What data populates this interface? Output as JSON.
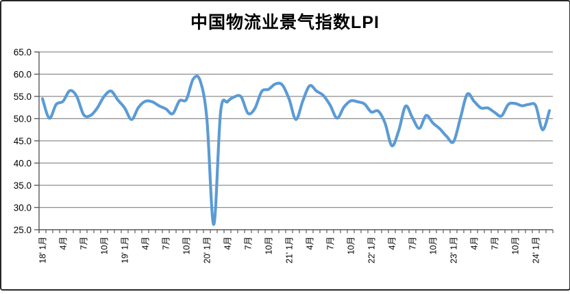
{
  "chart": {
    "title": "中国物流业景气指数LPI",
    "line_color": "#5B9BD5",
    "grid_color": "#8C8C8C",
    "axis_color": "#595959",
    "background_color": "#FFFFFF",
    "frame_color": "#262626"
  },
  "chart_data": {
    "type": "line",
    "title": "中国物流业景气指数LPI",
    "smooth": true,
    "grid": "horizontal",
    "legend": "none",
    "xlabel": "",
    "ylabel": "",
    "ylim": [
      25.0,
      65.0
    ],
    "y_ticks": [
      65.0,
      60.0,
      55.0,
      50.0,
      45.0,
      40.0,
      35.0,
      30.0,
      25.0
    ],
    "x_tick_labels": [
      "18' 1月",
      "4月",
      "7月",
      "10月",
      "19' 1月",
      "4月",
      "7月",
      "10月",
      "20' 1月",
      "4月",
      "7月",
      "10月",
      "21' 1月",
      "4月",
      "7月",
      "10月",
      "22' 1月",
      "4月",
      "7月",
      "10月",
      "23' 1月",
      "4月",
      "7月",
      "10月",
      "24' 1月"
    ],
    "tick_every": 3,
    "series": [
      {
        "name": "物流业景气指数LPI",
        "start_month": "2018-01",
        "end_month": "2024-03",
        "values": [
          54.5,
          50.1,
          53.2,
          53.9,
          56.3,
          55.0,
          50.9,
          50.7,
          52.4,
          55.0,
          56.2,
          54.2,
          52.4,
          49.8,
          52.5,
          53.9,
          53.8,
          52.9,
          52.2,
          51.1,
          54.0,
          54.3,
          58.9,
          58.6,
          49.9,
          26.2,
          51.5,
          53.8,
          54.9,
          54.9,
          51.2,
          52.3,
          56.1,
          56.6,
          57.8,
          57.6,
          54.4,
          49.8,
          54.0,
          57.4,
          56.2,
          55.2,
          53.0,
          50.1,
          52.6,
          54.0,
          53.8,
          53.3,
          51.5,
          51.7,
          49.0,
          43.9,
          47.3,
          52.8,
          50.2,
          47.8,
          50.7,
          49.0,
          47.7,
          46.0,
          44.8,
          50.1,
          55.5,
          53.9,
          52.4,
          52.4,
          51.4,
          50.6,
          53.2,
          53.4,
          52.9,
          53.2,
          52.9,
          47.5,
          51.8
        ]
      }
    ]
  }
}
